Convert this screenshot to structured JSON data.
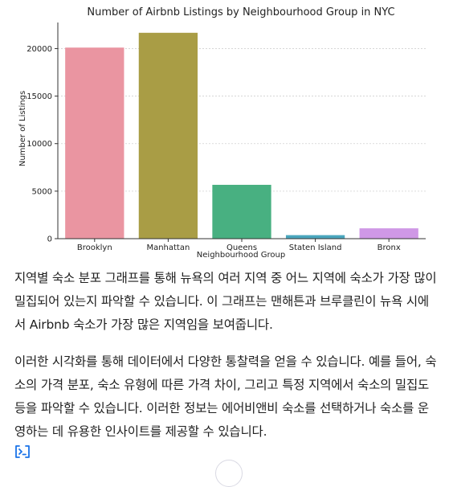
{
  "chart_data": {
    "type": "bar",
    "title": "Number of Airbnb Listings by Neighbourhood Group in NYC",
    "xlabel": "Neighbourhood Group",
    "ylabel": "Number of Listings",
    "categories": [
      "Brooklyn",
      "Manhattan",
      "Queens",
      "Staten Island",
      "Bronx"
    ],
    "values": [
      20104,
      21661,
      5666,
      373,
      1091
    ],
    "colors": [
      "#ea95a1",
      "#a99d45",
      "#48b081",
      "#4aa6bd",
      "#cf98e6"
    ],
    "ylim": [
      0,
      22743
    ],
    "yticks": [
      0,
      5000,
      10000,
      15000,
      20000
    ],
    "grid": true
  },
  "content": {
    "paragraph_1": "지역별 숙소 분포 그래프를 통해 뉴욕의 여러 지역 중 어느 지역에 숙소가 가장 많이 밀집되어 있는지 파악할 수 있습니다. 이 그래프는 맨해튼과 브루클린이 뉴욕 시에서 Airbnb 숙소가 가장 많은 지역임을 보여줍니다.",
    "paragraph_2": "이러한 시각화를 통해 데이터에서 다양한 통찰력을 얻을 수 있습니다. 예를 들어, 숙소의 가격 분포, 숙소 유형에 따른 가격 차이, 그리고 특정 지역에서 숙소의 밀집도 등을 파악할 수 있습니다. 이러한 정보는 에어비앤비 숙소를 선택하거나 숙소를 운영하는 데 유용한 인사이트를 제공할 수 있습니다.",
    "code_icon": "code-interpreter-icon",
    "scroll_icon": "scroll-down-icon",
    "accent_color": "#1a73e8"
  }
}
